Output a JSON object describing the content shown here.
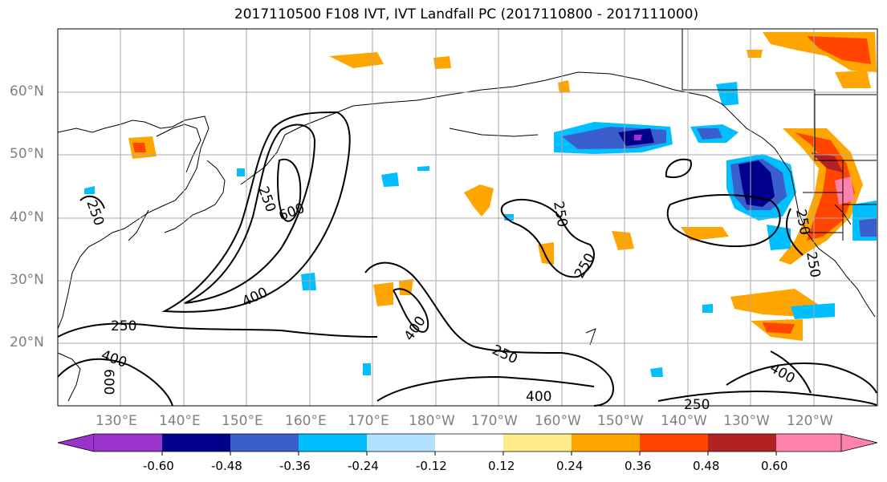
{
  "title": "2017110500 F108 IVT, IVT Landfall PC (2017110800 - 2017111000)",
  "lat_labels": [
    "60°N",
    "50°N",
    "40°N",
    "30°N",
    "20°N"
  ],
  "lon_labels": [
    "130°E",
    "140°E",
    "150°E",
    "160°E",
    "170°E",
    "180°W",
    "170°W",
    "160°W",
    "150°W",
    "140°W",
    "130°W",
    "120°W"
  ],
  "contour_labels": [
    "250",
    "250",
    "400",
    "600",
    "400",
    "250",
    "600",
    "400",
    "250",
    "250",
    "400",
    "250",
    "250",
    "250",
    "400",
    "250"
  ],
  "colorbar": {
    "ticks": [
      "-0.60",
      "-0.48",
      "-0.36",
      "-0.24",
      "-0.12",
      "0.12",
      "0.24",
      "0.36",
      "0.48",
      "0.60"
    ],
    "colors": [
      "#9933cc",
      "#00008b",
      "#3a5fcd",
      "#00bfff",
      "#b0e2ff",
      "#ffffff",
      "#ffec8b",
      "#ffa500",
      "#ff4500",
      "#b22222",
      "#ff82ab"
    ]
  }
}
